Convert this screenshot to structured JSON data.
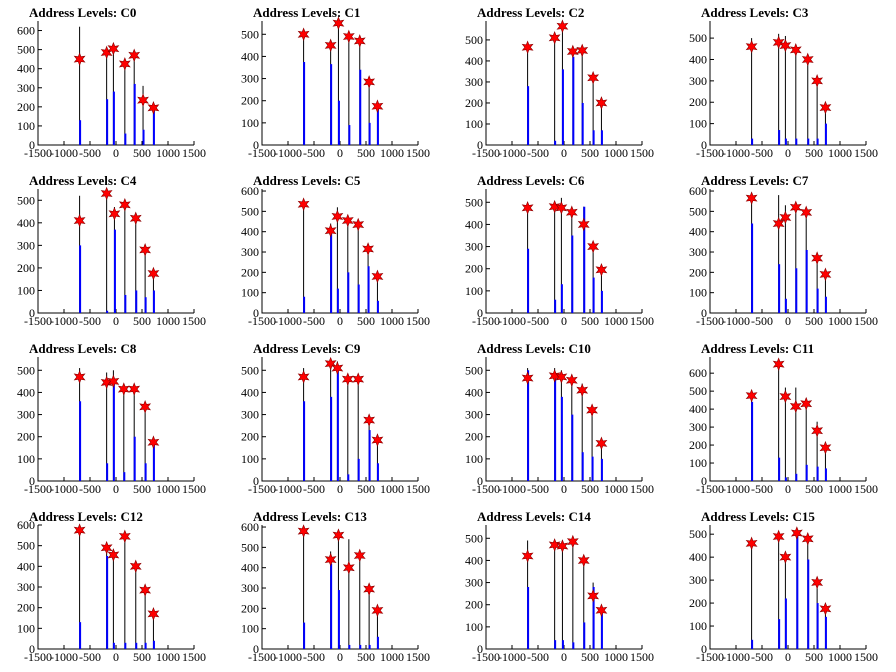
{
  "colors": {
    "histogram": "#000000",
    "overlay": "#0000ff",
    "markers": "#ff0000"
  },
  "x_tick_labels": [
    "-1500",
    "-1000",
    "-500",
    "0",
    "500",
    "1000",
    "1500"
  ],
  "chart_data": [
    {
      "type": "bar",
      "title": "Address Levels: C0",
      "xlim": [
        -1500,
        1500
      ],
      "ylim": [
        0,
        650
      ],
      "yticks": [
        0,
        100,
        200,
        300,
        400,
        500,
        600
      ],
      "x": [
        -700,
        -180,
        -50,
        170,
        350,
        520,
        720
      ],
      "black": [
        620,
        505,
        520,
        400,
        490,
        310,
        200
      ],
      "blue": [
        130,
        240,
        280,
        60,
        320,
        80,
        180
      ],
      "markers": [
        450,
        485,
        505,
        425,
        470,
        235,
        195
      ]
    },
    {
      "type": "bar",
      "title": "Address Levels: C1",
      "xlim": [
        -1500,
        1500
      ],
      "ylim": [
        0,
        560
      ],
      "yticks": [
        0,
        100,
        200,
        300,
        400,
        500
      ],
      "x": [
        -700,
        -180,
        -30,
        170,
        380,
        560,
        720
      ],
      "black": [
        510,
        460,
        560,
        510,
        480,
        290,
        190
      ],
      "blue": [
        375,
        365,
        200,
        90,
        340,
        100,
        170
      ],
      "markers": [
        500,
        450,
        550,
        490,
        470,
        285,
        175
      ]
    },
    {
      "type": "bar",
      "title": "Address Levels: C2",
      "xlim": [
        -1500,
        1500
      ],
      "ylim": [
        0,
        590
      ],
      "yticks": [
        0,
        100,
        200,
        300,
        400,
        500
      ],
      "x": [
        -700,
        -180,
        -30,
        170,
        350,
        560,
        720
      ],
      "black": [
        480,
        530,
        590,
        470,
        470,
        330,
        200
      ],
      "blue": [
        280,
        20,
        360,
        420,
        200,
        70,
        70
      ],
      "markers": [
        465,
        510,
        565,
        445,
        450,
        320,
        200
      ]
    },
    {
      "type": "bar",
      "title": "Address Levels: C3",
      "xlim": [
        -1500,
        1500
      ],
      "ylim": [
        0,
        580
      ],
      "yticks": [
        0,
        100,
        200,
        300,
        400,
        500
      ],
      "x": [
        -700,
        -180,
        -50,
        150,
        380,
        560,
        720
      ],
      "black": [
        500,
        520,
        510,
        470,
        420,
        310,
        190
      ],
      "blue": [
        30,
        70,
        30,
        30,
        30,
        30,
        100
      ],
      "markers": [
        460,
        480,
        465,
        445,
        400,
        300,
        175
      ]
    },
    {
      "type": "bar",
      "title": "Address Levels: C4",
      "xlim": [
        -1500,
        1500
      ],
      "ylim": [
        0,
        550
      ],
      "yticks": [
        0,
        100,
        200,
        300,
        400,
        500
      ],
      "x": [
        -700,
        -180,
        -30,
        170,
        380,
        560,
        720
      ],
      "black": [
        520,
        550,
        470,
        500,
        440,
        290,
        190
      ],
      "blue": [
        300,
        10,
        370,
        80,
        100,
        70,
        100
      ],
      "markers": [
        410,
        530,
        440,
        480,
        420,
        280,
        175
      ]
    },
    {
      "type": "bar",
      "title": "Address Levels: C5",
      "xlim": [
        -1500,
        1500
      ],
      "ylim": [
        0,
        610
      ],
      "yticks": [
        0,
        100,
        200,
        300,
        400,
        500,
        600
      ],
      "x": [
        -700,
        -180,
        -50,
        150,
        350,
        540,
        720
      ],
      "black": [
        540,
        440,
        520,
        460,
        450,
        320,
        200
      ],
      "blue": [
        80,
        400,
        120,
        200,
        140,
        230,
        60
      ],
      "markers": [
        535,
        405,
        475,
        455,
        435,
        315,
        180
      ]
    },
    {
      "type": "bar",
      "title": "Address Levels: C6",
      "xlim": [
        -1500,
        1500
      ],
      "ylim": [
        0,
        560
      ],
      "yticks": [
        0,
        100,
        200,
        300,
        400,
        500
      ],
      "x": [
        -700,
        -180,
        -50,
        150,
        380,
        560,
        720
      ],
      "black": [
        490,
        500,
        520,
        470,
        480,
        320,
        200
      ],
      "blue": [
        290,
        60,
        130,
        350,
        480,
        160,
        100
      ],
      "markers": [
        475,
        480,
        475,
        455,
        400,
        300,
        195
      ]
    },
    {
      "type": "bar",
      "title": "Address Levels: C7",
      "xlim": [
        -1500,
        1500
      ],
      "ylim": [
        0,
        610
      ],
      "yticks": [
        0,
        100,
        200,
        300,
        400,
        500,
        600
      ],
      "x": [
        -700,
        -180,
        -50,
        150,
        350,
        560,
        720
      ],
      "black": [
        590,
        580,
        530,
        540,
        510,
        290,
        200
      ],
      "blue": [
        440,
        240,
        70,
        220,
        310,
        120,
        80
      ],
      "markers": [
        565,
        440,
        470,
        520,
        495,
        270,
        190
      ]
    },
    {
      "type": "bar",
      "title": "Address Levels: C8",
      "xlim": [
        -1500,
        1500
      ],
      "ylim": [
        0,
        560
      ],
      "yticks": [
        0,
        100,
        200,
        300,
        400,
        500
      ],
      "x": [
        -700,
        -180,
        -50,
        150,
        350,
        560,
        720
      ],
      "black": [
        510,
        490,
        500,
        430,
        430,
        350,
        190
      ],
      "blue": [
        360,
        80,
        460,
        40,
        200,
        80,
        170
      ],
      "markers": [
        470,
        445,
        450,
        415,
        415,
        335,
        175
      ]
    },
    {
      "type": "bar",
      "title": "Address Levels: C9",
      "xlim": [
        -1500,
        1500
      ],
      "ylim": [
        0,
        560
      ],
      "yticks": [
        0,
        100,
        200,
        300,
        400,
        500
      ],
      "x": [
        -700,
        -180,
        -50,
        150,
        350,
        560,
        720
      ],
      "black": [
        510,
        550,
        540,
        480,
        470,
        290,
        200
      ],
      "blue": [
        360,
        380,
        500,
        30,
        100,
        230,
        80
      ],
      "markers": [
        470,
        530,
        510,
        460,
        460,
        275,
        185
      ]
    },
    {
      "type": "bar",
      "title": "Address Levels: C10",
      "xlim": [
        -1500,
        1500
      ],
      "ylim": [
        0,
        560
      ],
      "yticks": [
        0,
        100,
        200,
        300,
        400,
        500
      ],
      "x": [
        -700,
        -180,
        -50,
        150,
        350,
        540,
        720
      ],
      "black": [
        510,
        510,
        500,
        480,
        440,
        330,
        190
      ],
      "blue": [
        500,
        470,
        380,
        300,
        130,
        110,
        100
      ],
      "markers": [
        465,
        475,
        470,
        455,
        410,
        320,
        170
      ]
    },
    {
      "type": "bar",
      "title": "Address Levels: C11",
      "xlim": [
        -1500,
        1500
      ],
      "ylim": [
        0,
        690
      ],
      "yticks": [
        0,
        100,
        200,
        300,
        400,
        500,
        600
      ],
      "x": [
        -700,
        -180,
        -50,
        150,
        350,
        560,
        720
      ],
      "black": [
        500,
        670,
        520,
        520,
        460,
        330,
        200
      ],
      "blue": [
        440,
        130,
        20,
        40,
        90,
        80,
        70
      ],
      "markers": [
        475,
        650,
        470,
        415,
        430,
        280,
        185
      ]
    },
    {
      "type": "bar",
      "title": "Address Levels: C12",
      "xlim": [
        -1500,
        1500
      ],
      "ylim": [
        0,
        600
      ],
      "yticks": [
        0,
        100,
        200,
        300,
        400,
        500,
        600
      ],
      "x": [
        -700,
        -180,
        -50,
        170,
        380,
        560,
        720
      ],
      "black": [
        590,
        510,
        480,
        560,
        420,
        300,
        180
      ],
      "blue": [
        130,
        450,
        30,
        30,
        30,
        30,
        40
      ],
      "markers": [
        575,
        490,
        455,
        545,
        400,
        285,
        170
      ]
    },
    {
      "type": "bar",
      "title": "Address Levels: C13",
      "xlim": [
        -1500,
        1500
      ],
      "ylim": [
        0,
        610
      ],
      "yticks": [
        0,
        100,
        200,
        300,
        400,
        500,
        600
      ],
      "x": [
        -700,
        -180,
        -30,
        170,
        380,
        560,
        720
      ],
      "black": [
        600,
        480,
        580,
        540,
        470,
        310,
        200
      ],
      "blue": [
        130,
        420,
        290,
        20,
        20,
        20,
        60
      ],
      "markers": [
        580,
        440,
        560,
        400,
        460,
        295,
        190
      ]
    },
    {
      "type": "bar",
      "title": "Address Levels: C14",
      "xlim": [
        -1500,
        1500
      ],
      "ylim": [
        0,
        560
      ],
      "yticks": [
        0,
        100,
        200,
        300,
        400,
        500
      ],
      "x": [
        -700,
        -180,
        -30,
        170,
        380,
        560,
        720
      ],
      "black": [
        490,
        490,
        490,
        500,
        420,
        300,
        190
      ],
      "blue": [
        280,
        40,
        40,
        30,
        120,
        280,
        160
      ],
      "markers": [
        420,
        470,
        465,
        485,
        400,
        240,
        175
      ]
    },
    {
      "type": "bar",
      "title": "Address Levels: C15",
      "xlim": [
        -1500,
        1500
      ],
      "ylim": [
        0,
        540
      ],
      "yticks": [
        0,
        100,
        200,
        300,
        400,
        500
      ],
      "x": [
        -700,
        -180,
        -50,
        170,
        380,
        560,
        720
      ],
      "black": [
        470,
        510,
        420,
        520,
        490,
        300,
        190
      ],
      "blue": [
        40,
        130,
        220,
        500,
        390,
        200,
        140
      ],
      "markers": [
        460,
        490,
        400,
        505,
        480,
        290,
        175
      ]
    }
  ]
}
